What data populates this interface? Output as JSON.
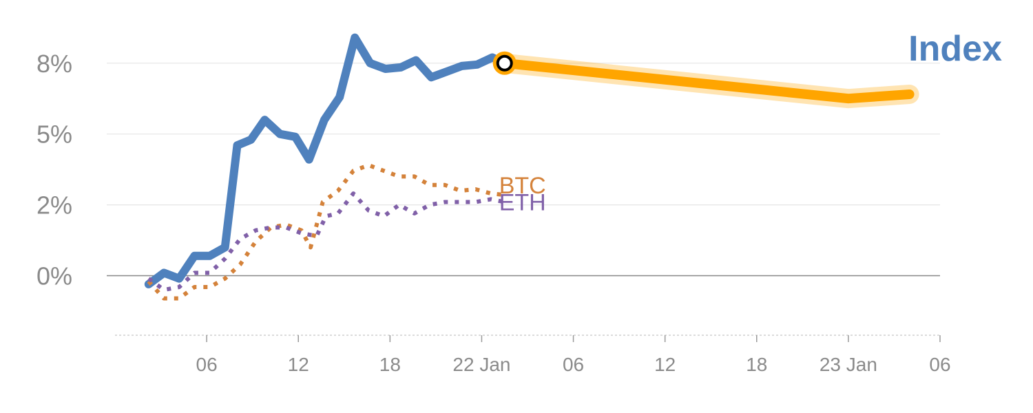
{
  "chart_data": {
    "type": "line",
    "title": "Index",
    "xlabel": "",
    "ylabel": "",
    "x_tick_labels": [
      "06",
      "12",
      "18",
      "22 Jan",
      "06",
      "12",
      "18",
      "23 Jan",
      "06"
    ],
    "x_ticks_hours": [
      6,
      12,
      18,
      24,
      30,
      36,
      42,
      48,
      54
    ],
    "y_tick_labels": [
      "0%",
      "2%",
      "5%",
      "8%"
    ],
    "y_ticks": [
      0,
      2.5,
      5,
      7.5
    ],
    "ylim": [
      -2.1,
      9.0
    ],
    "xlim_hours": [
      0,
      54
    ],
    "grid": true,
    "colors": {
      "index": "#4f81bd",
      "forecast": "#ffa500",
      "btc": "#d4823a",
      "eth": "#8060a8",
      "grid": "#e6e6e6",
      "zero": "#888888",
      "tick": "#8a8a8a"
    },
    "series": [
      {
        "name": "Index",
        "style": "solid",
        "points": [
          [
            2.2,
            -0.3
          ],
          [
            3.2,
            0.1
          ],
          [
            4.2,
            -0.1
          ],
          [
            5.2,
            0.7
          ],
          [
            6.2,
            0.7
          ],
          [
            7.2,
            1.0
          ],
          [
            8.0,
            4.6
          ],
          [
            8.9,
            4.8
          ],
          [
            9.8,
            5.5
          ],
          [
            10.8,
            5.0
          ],
          [
            11.8,
            4.9
          ],
          [
            12.7,
            4.1
          ],
          [
            13.7,
            5.5
          ],
          [
            14.7,
            6.3
          ],
          [
            15.7,
            8.4
          ],
          [
            16.7,
            7.5
          ],
          [
            17.7,
            7.3
          ],
          [
            18.7,
            7.35
          ],
          [
            19.7,
            7.6
          ],
          [
            20.7,
            7.0
          ],
          [
            21.7,
            7.2
          ],
          [
            22.7,
            7.4
          ],
          [
            23.7,
            7.45
          ],
          [
            24.7,
            7.7
          ],
          [
            25.5,
            7.5
          ]
        ]
      },
      {
        "name": "",
        "style": "forecast",
        "points": [
          [
            25.5,
            7.5
          ],
          [
            48,
            6.25
          ],
          [
            52,
            6.4
          ]
        ]
      },
      {
        "name": "BTC",
        "style": "dotted",
        "points": [
          [
            2.2,
            -0.2
          ],
          [
            3.2,
            -0.8
          ],
          [
            4.2,
            -0.8
          ],
          [
            5.2,
            -0.4
          ],
          [
            6.2,
            -0.4
          ],
          [
            7.2,
            -0.1
          ],
          [
            8.2,
            0.4
          ],
          [
            9.2,
            1.2
          ],
          [
            10.2,
            1.7
          ],
          [
            11.2,
            1.8
          ],
          [
            12.2,
            1.6
          ],
          [
            12.8,
            1.0
          ],
          [
            13.6,
            2.6
          ],
          [
            14.6,
            3.0
          ],
          [
            15.6,
            3.7
          ],
          [
            16.6,
            3.9
          ],
          [
            17.6,
            3.7
          ],
          [
            18.6,
            3.5
          ],
          [
            19.6,
            3.5
          ],
          [
            20.6,
            3.2
          ],
          [
            21.6,
            3.2
          ],
          [
            22.6,
            3.0
          ],
          [
            23.6,
            3.05
          ],
          [
            24.6,
            2.9
          ],
          [
            25.5,
            2.85
          ]
        ]
      },
      {
        "name": "ETH",
        "style": "dotted",
        "points": [
          [
            2.2,
            -0.1
          ],
          [
            3.2,
            -0.5
          ],
          [
            4.2,
            -0.4
          ],
          [
            5.2,
            0.1
          ],
          [
            6.2,
            0.1
          ],
          [
            7.2,
            0.6
          ],
          [
            8.2,
            1.3
          ],
          [
            9.2,
            1.6
          ],
          [
            10.2,
            1.7
          ],
          [
            11.2,
            1.7
          ],
          [
            12.2,
            1.5
          ],
          [
            13.2,
            1.4
          ],
          [
            13.8,
            2.1
          ],
          [
            14.6,
            2.2
          ],
          [
            15.6,
            2.9
          ],
          [
            16.6,
            2.3
          ],
          [
            17.6,
            2.1
          ],
          [
            18.6,
            2.5
          ],
          [
            19.6,
            2.2
          ],
          [
            20.6,
            2.5
          ],
          [
            21.6,
            2.6
          ],
          [
            22.6,
            2.6
          ],
          [
            23.6,
            2.6
          ],
          [
            24.6,
            2.7
          ],
          [
            25.5,
            2.6
          ]
        ]
      }
    ],
    "marker": {
      "x": 25.5,
      "y": 7.5
    }
  }
}
